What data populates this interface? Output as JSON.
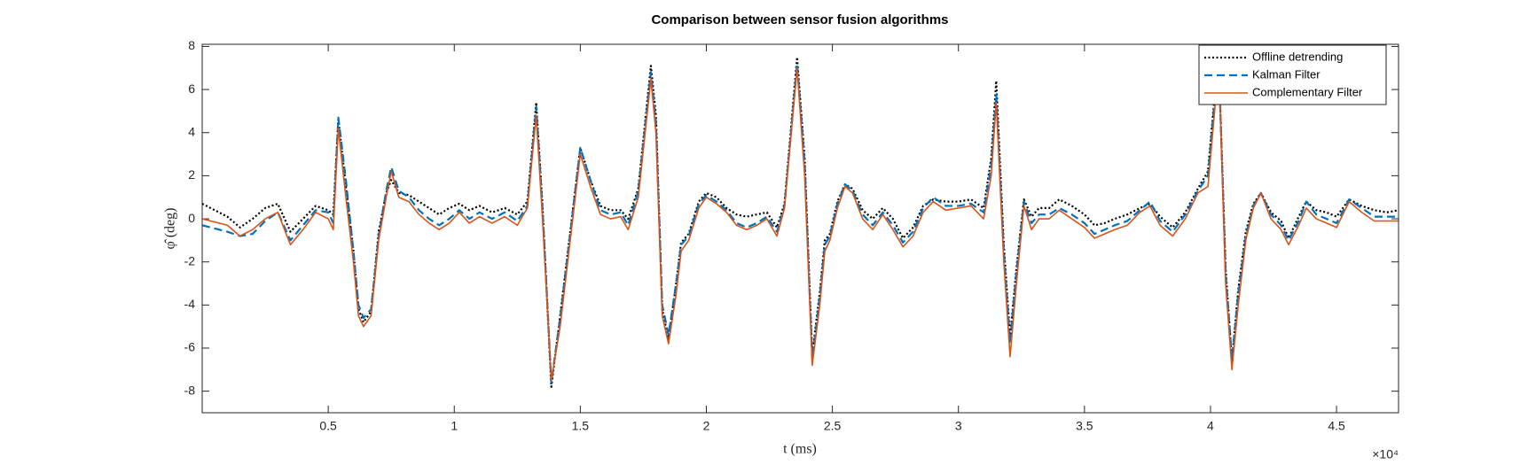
{
  "chart_data": {
    "type": "line",
    "title": "Comparison between sensor fusion algorithms",
    "xlabel": "t (ms)",
    "ylabel": "φ̂ (deg)",
    "x_multiplier": "×10⁴",
    "xlim": [
      0,
      47460
    ],
    "ylim": [
      -9,
      8.1
    ],
    "xticks": [
      {
        "value": 5000,
        "label": "0.5"
      },
      {
        "value": 10000,
        "label": "1"
      },
      {
        "value": 15000,
        "label": "1.5"
      },
      {
        "value": 20000,
        "label": "2"
      },
      {
        "value": 25000,
        "label": "2.5"
      },
      {
        "value": 30000,
        "label": "3"
      },
      {
        "value": 35000,
        "label": "3.5"
      },
      {
        "value": 40000,
        "label": "4"
      },
      {
        "value": 45000,
        "label": "4.5"
      }
    ],
    "yticks": [
      -8,
      -6,
      -4,
      -2,
      0,
      2,
      4,
      6,
      8
    ],
    "grid": false,
    "legend": "top-right",
    "x": [
      0,
      1000,
      1500,
      2000,
      2500,
      3000,
      3500,
      4000,
      4500,
      5000,
      5200,
      5400,
      5700,
      6000,
      6200,
      6400,
      6700,
      7000,
      7300,
      7500,
      7800,
      8200,
      8600,
      9000,
      9400,
      9800,
      10200,
      10600,
      11000,
      11500,
      12000,
      12500,
      12900,
      13250,
      13500,
      13850,
      14200,
      14600,
      15000,
      15400,
      15800,
      16200,
      16600,
      16900,
      17300,
      17800,
      18000,
      18250,
      18500,
      18800,
      19000,
      19300,
      19700,
      20000,
      20400,
      20800,
      21200,
      21600,
      22000,
      22400,
      22800,
      23100,
      23600,
      23900,
      24200,
      24500,
      24700,
      24900,
      25200,
      25500,
      25800,
      26200,
      26600,
      27000,
      27400,
      27800,
      28200,
      28600,
      29000,
      29500,
      30000,
      30500,
      31000,
      31300,
      31500,
      31800,
      32050,
      32300,
      32600,
      32900,
      33200,
      33600,
      34000,
      34500,
      35000,
      35400,
      35800,
      36200,
      36700,
      37200,
      37600,
      38000,
      38500,
      39000,
      39500,
      39900,
      40200,
      40350,
      40600,
      40850,
      41100,
      41400,
      41700,
      42000,
      42400,
      42800,
      43100,
      43500,
      43800,
      44200,
      44600,
      45000,
      45500,
      46000,
      46500,
      47000,
      47460
    ],
    "series": [
      {
        "name": "Offline detrending",
        "color": "#000000",
        "line_style": "dotted",
        "values": [
          0.7,
          0.1,
          -0.4,
          0.0,
          0.5,
          0.7,
          -0.6,
          0.0,
          0.6,
          0.4,
          0.2,
          4.6,
          1.5,
          -1.5,
          -4.2,
          -4.8,
          -4.3,
          -0.6,
          1.2,
          1.8,
          1.2,
          1.1,
          0.8,
          0.5,
          0.2,
          0.5,
          0.7,
          0.4,
          0.6,
          0.3,
          0.5,
          0.2,
          0.8,
          5.4,
          0.6,
          -7.8,
          -4.5,
          -0.6,
          3.3,
          1.8,
          0.6,
          0.4,
          0.4,
          0.0,
          1.4,
          7.1,
          4.8,
          -4.2,
          -5.6,
          -3.0,
          -1.1,
          -0.7,
          0.8,
          1.2,
          1.0,
          0.5,
          0.2,
          0.1,
          0.2,
          0.3,
          -0.4,
          0.7,
          7.5,
          2.8,
          -6.3,
          -3.4,
          -1.0,
          -0.7,
          0.8,
          1.6,
          1.4,
          0.4,
          0.0,
          0.5,
          0.0,
          -0.9,
          -0.4,
          0.6,
          0.9,
          0.8,
          0.8,
          0.9,
          0.5,
          2.8,
          6.4,
          -1.2,
          -5.5,
          -2.3,
          0.9,
          0.1,
          0.5,
          0.5,
          0.9,
          0.6,
          0.2,
          -0.3,
          -0.2,
          0.0,
          0.2,
          0.5,
          0.7,
          0.1,
          -0.4,
          0.3,
          1.4,
          2.2,
          6.2,
          6.5,
          -2.3,
          -6.6,
          -3.3,
          -0.6,
          0.7,
          1.2,
          0.3,
          -0.1,
          -0.9,
          0.1,
          0.8,
          0.4,
          0.3,
          0.1,
          0.9,
          0.6,
          0.4,
          0.3,
          0.4
        ]
      },
      {
        "name": "Kalman Filter",
        "color": "#0072bd",
        "line_style": "dashed",
        "values": [
          -0.3,
          -0.6,
          -0.8,
          -0.7,
          -0.1,
          0.3,
          -1.0,
          -0.3,
          0.4,
          0.3,
          -0.2,
          4.7,
          1.8,
          -1.5,
          -4.0,
          -4.6,
          -4.2,
          -0.8,
          1.3,
          2.4,
          1.3,
          1.0,
          0.4,
          0.0,
          -0.3,
          0.0,
          0.4,
          0.0,
          0.3,
          0.0,
          0.3,
          -0.1,
          0.6,
          5.2,
          0.5,
          -7.6,
          -4.6,
          -0.7,
          3.3,
          1.8,
          0.4,
          0.2,
          0.3,
          -0.3,
          1.3,
          6.8,
          4.5,
          -4.0,
          -5.4,
          -3.0,
          -1.2,
          -0.8,
          0.7,
          1.1,
          0.8,
          0.4,
          -0.2,
          -0.4,
          -0.2,
          0.1,
          -0.6,
          0.6,
          7.2,
          2.6,
          -6.5,
          -3.6,
          -1.2,
          -0.8,
          0.7,
          1.6,
          1.3,
          0.2,
          -0.3,
          0.3,
          -0.3,
          -1.1,
          -0.6,
          0.5,
          1.0,
          0.6,
          0.6,
          0.7,
          0.3,
          2.5,
          5.8,
          -1.5,
          -5.7,
          -2.5,
          0.8,
          -0.2,
          0.2,
          0.2,
          0.5,
          0.2,
          -0.2,
          -0.7,
          -0.5,
          -0.3,
          -0.1,
          0.4,
          0.8,
          -0.1,
          -0.6,
          0.2,
          1.3,
          2.0,
          6.0,
          6.5,
          -2.5,
          -6.5,
          -3.5,
          -0.8,
          0.6,
          1.2,
          0.2,
          -0.3,
          -1.0,
          -0.1,
          0.8,
          0.2,
          0.0,
          -0.2,
          0.9,
          0.5,
          0.1,
          0.1,
          0.1
        ]
      },
      {
        "name": "Complementary Filter",
        "color": "#d95319",
        "line_style": "solid",
        "values": [
          0.0,
          -0.3,
          -0.8,
          -0.5,
          0.0,
          0.3,
          -1.2,
          -0.5,
          0.3,
          0.0,
          -0.5,
          4.2,
          1.0,
          -2.0,
          -4.5,
          -5.0,
          -4.5,
          -1.0,
          1.0,
          2.2,
          1.0,
          0.8,
          0.2,
          -0.2,
          -0.5,
          -0.2,
          0.3,
          -0.2,
          0.1,
          -0.2,
          0.1,
          -0.3,
          0.5,
          4.8,
          0.0,
          -7.5,
          -5.0,
          -1.0,
          3.0,
          1.5,
          0.2,
          0.0,
          0.1,
          -0.5,
          1.0,
          6.5,
          4.0,
          -4.5,
          -5.8,
          -3.5,
          -1.5,
          -1.0,
          0.5,
          1.0,
          0.7,
          0.3,
          -0.3,
          -0.5,
          -0.3,
          0.0,
          -0.8,
          0.5,
          7.0,
          2.0,
          -6.8,
          -4.0,
          -1.5,
          -1.0,
          0.5,
          1.5,
          1.2,
          0.0,
          -0.5,
          0.2,
          -0.5,
          -1.3,
          -0.8,
          0.3,
          0.8,
          0.4,
          0.5,
          0.6,
          0.0,
          2.0,
          5.4,
          -2.0,
          -6.4,
          -3.0,
          0.6,
          -0.5,
          0.0,
          0.0,
          0.4,
          0.0,
          -0.4,
          -0.9,
          -0.7,
          -0.5,
          -0.3,
          0.3,
          0.6,
          -0.3,
          -0.8,
          0.0,
          1.2,
          1.5,
          5.5,
          6.5,
          -3.0,
          -7.0,
          -4.0,
          -1.0,
          0.5,
          1.2,
          0.0,
          -0.5,
          -1.2,
          -0.3,
          0.5,
          0.0,
          -0.2,
          -0.4,
          0.8,
          0.3,
          -0.1,
          -0.1,
          -0.1
        ]
      }
    ]
  }
}
